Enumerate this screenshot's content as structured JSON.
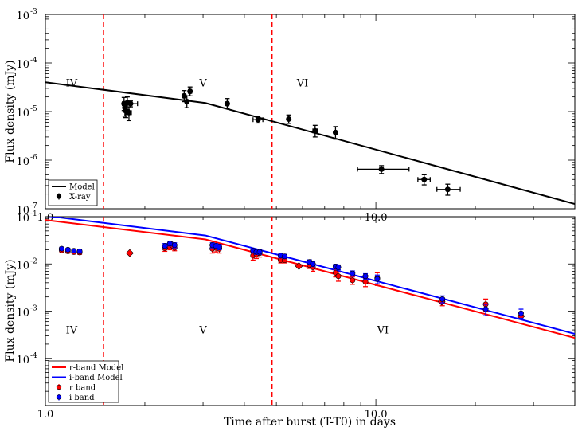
{
  "chart_data": [
    {
      "id": "top",
      "type": "line",
      "xscale": "log",
      "yscale": "log",
      "xlim": [
        1.0,
        40.0
      ],
      "ylim": [
        1e-07,
        0.001
      ],
      "xlabel": "",
      "ylabel": "Flux density (mJy)",
      "x_tick_labels": [
        {
          "value": 1.0,
          "label": "1.0"
        },
        {
          "value": 10.0,
          "label": "10.0"
        }
      ],
      "y_tick_labels": [
        {
          "value": 1e-07,
          "base": "10",
          "exp": "-7"
        },
        {
          "value": 1e-06,
          "base": "10",
          "exp": "-6"
        },
        {
          "value": 1e-05,
          "base": "10",
          "exp": "-5"
        },
        {
          "value": 0.0001,
          "base": "10",
          "exp": "-4"
        },
        {
          "value": 0.001,
          "base": "10",
          "exp": "-3"
        }
      ],
      "vlines": [
        1.5,
        4.85
      ],
      "vline_color": "#ff0000",
      "regions": [
        {
          "label": "IV",
          "x": 1.2,
          "y": 3.3e-05
        },
        {
          "label": "V",
          "x": 3.0,
          "y": 3.3e-05
        },
        {
          "label": "VI",
          "x": 6.0,
          "y": 3.3e-05
        }
      ],
      "legend_loc": "lower left",
      "series": [
        {
          "name": "Model",
          "kind": "line",
          "color": "#000000",
          "points": [
            [
              1.0,
              4e-05
            ],
            [
              3.05,
              1.5e-05
            ],
            [
              40.0,
              1.25e-07
            ]
          ]
        },
        {
          "name": "X-ray",
          "kind": "errorbar",
          "color": "#000000",
          "marker": "circle",
          "points": [
            {
              "x": 1.73,
              "y": 1.45e-05,
              "xerr": [
                0.02,
                0.02
              ],
              "yerr": [
                4e-06,
                5e-06
              ]
            },
            {
              "x": 1.74,
              "y": 1.2e-05,
              "xerr": [
                0.02,
                0.02
              ],
              "yerr": [
                4e-06,
                4e-06
              ]
            },
            {
              "x": 1.75,
              "y": 1.05e-05,
              "xerr": [
                0.02,
                0.02
              ],
              "yerr": [
                3e-06,
                4e-06
              ]
            },
            {
              "x": 1.77,
              "y": 1.5e-05,
              "xerr": [
                0.02,
                0.02
              ],
              "yerr": [
                4e-06,
                5e-06
              ]
            },
            {
              "x": 1.79,
              "y": 9.5e-06,
              "xerr": [
                0.03,
                0.03
              ],
              "yerr": [
                3e-06,
                3e-06
              ]
            },
            {
              "x": 1.81,
              "y": 1.45e-05,
              "xerr": [
                0.06,
                0.09
              ],
              "yerr": [
                2e-06,
                2e-06
              ]
            },
            {
              "x": 2.63,
              "y": 2.1e-05,
              "xerr": [
                0.03,
                0.03
              ],
              "yerr": [
                5e-06,
                6e-06
              ]
            },
            {
              "x": 2.68,
              "y": 1.6e-05,
              "xerr": [
                0.03,
                0.03
              ],
              "yerr": [
                4e-06,
                5e-06
              ]
            },
            {
              "x": 2.74,
              "y": 2.6e-05,
              "xerr": [
                0.03,
                0.03
              ],
              "yerr": [
                5e-06,
                6e-06
              ]
            },
            {
              "x": 3.55,
              "y": 1.45e-05,
              "xerr": [
                0.03,
                0.04
              ],
              "yerr": [
                3e-06,
                4e-06
              ]
            },
            {
              "x": 4.4,
              "y": 6.8e-06,
              "xerr": [
                0.15,
                0.15
              ],
              "yerr": [
                1e-06,
                1e-06
              ]
            },
            {
              "x": 5.45,
              "y": 7e-06,
              "xerr": [
                0.03,
                0.03
              ],
              "yerr": [
                1.3e-06,
                1.5e-06
              ]
            },
            {
              "x": 6.55,
              "y": 4e-06,
              "xerr": [
                0.1,
                0.1
              ],
              "yerr": [
                1e-06,
                1.2e-06
              ]
            },
            {
              "x": 7.55,
              "y": 3.7e-06,
              "xerr": [
                0.04,
                0.04
              ],
              "yerr": [
                1e-06,
                1.2e-06
              ]
            },
            {
              "x": 10.4,
              "y": 6.5e-07,
              "xerr": [
                1.6,
                2.2
              ],
              "yerr": [
                1.2e-07,
                1.2e-07
              ]
            },
            {
              "x": 14.0,
              "y": 4e-07,
              "xerr": [
                0.6,
                0.6
              ],
              "yerr": [
                9e-08,
                1e-07
              ]
            },
            {
              "x": 16.5,
              "y": 2.5e-07,
              "xerr": [
                1.2,
                1.5
              ],
              "yerr": [
                6e-08,
                7e-08
              ]
            }
          ]
        }
      ]
    },
    {
      "id": "bottom",
      "type": "line",
      "xscale": "log",
      "yscale": "log",
      "xlim": [
        1.0,
        40.0
      ],
      "ylim": [
        1e-05,
        0.1
      ],
      "xlabel": "Time after burst (T-T0) in days",
      "ylabel": "Flux density (mJy)",
      "x_tick_labels": [
        {
          "value": 1.0,
          "label": "1.0"
        },
        {
          "value": 10.0,
          "label": "10.0"
        }
      ],
      "y_tick_labels": [
        {
          "value": 0.0001,
          "base": "10",
          "exp": "-4"
        },
        {
          "value": 0.001,
          "base": "10",
          "exp": "-3"
        },
        {
          "value": 0.01,
          "base": "10",
          "exp": "-2"
        },
        {
          "value": 0.1,
          "base": "10",
          "exp": "-1"
        }
      ],
      "vlines": [
        1.5,
        4.85
      ],
      "vline_color": "#ff0000",
      "regions": [
        {
          "label": "IV",
          "x": 1.2,
          "y": 0.00034
        },
        {
          "label": "V",
          "x": 3.0,
          "y": 0.00034
        },
        {
          "label": "VI",
          "x": 10.5,
          "y": 0.00034
        }
      ],
      "legend_loc": "lower left",
      "series": [
        {
          "name": "r-band Model",
          "kind": "line",
          "color": "#ff0000",
          "points": [
            [
              1.0,
              0.085
            ],
            [
              3.05,
              0.033
            ],
            [
              40.0,
              0.00027
            ]
          ]
        },
        {
          "name": "i-band Model",
          "kind": "line",
          "color": "#0000ff",
          "points": [
            [
              1.0,
              0.105
            ],
            [
              3.05,
              0.04
            ],
            [
              40.0,
              0.00033
            ]
          ]
        },
        {
          "name": "r band",
          "kind": "errorbar",
          "color": "#ff0000",
          "marker": "circle",
          "points": [
            {
              "x": 1.12,
              "y": 0.0195,
              "yerr": 0.0015
            },
            {
              "x": 1.17,
              "y": 0.0185,
              "yerr": 0.0015
            },
            {
              "x": 1.22,
              "y": 0.0178,
              "yerr": 0.0015
            },
            {
              "x": 1.27,
              "y": 0.0175,
              "yerr": 0.0015
            },
            {
              "x": 2.3,
              "y": 0.0215,
              "yerr": 0.003
            },
            {
              "x": 2.38,
              "y": 0.023,
              "yerr": 0.003
            },
            {
              "x": 2.46,
              "y": 0.022,
              "yerr": 0.003
            },
            {
              "x": 3.2,
              "y": 0.021,
              "yerr": 0.004
            },
            {
              "x": 3.28,
              "y": 0.022,
              "yerr": 0.004
            },
            {
              "x": 3.36,
              "y": 0.021,
              "yerr": 0.004
            },
            {
              "x": 4.25,
              "y": 0.015,
              "yerr": 0.003
            },
            {
              "x": 4.35,
              "y": 0.016,
              "yerr": 0.003
            },
            {
              "x": 4.45,
              "y": 0.017,
              "yerr": 0.003
            },
            {
              "x": 5.15,
              "y": 0.012,
              "yerr": 0.0015
            },
            {
              "x": 5.3,
              "y": 0.012,
              "yerr": 0.0015
            },
            {
              "x": 6.3,
              "y": 0.0095,
              "yerr": 0.0015
            },
            {
              "x": 6.45,
              "y": 0.0085,
              "yerr": 0.0015
            },
            {
              "x": 7.55,
              "y": 0.0065,
              "yerr": 0.0012
            },
            {
              "x": 7.7,
              "y": 0.0055,
              "yerr": 0.0012
            },
            {
              "x": 8.5,
              "y": 0.0045,
              "yerr": 0.0008
            },
            {
              "x": 9.3,
              "y": 0.0042,
              "yerr": 0.0009
            },
            {
              "x": 10.1,
              "y": 0.005,
              "yerr": 0.0015
            },
            {
              "x": 15.9,
              "y": 0.0016,
              "yerr": 0.0003
            },
            {
              "x": 21.5,
              "y": 0.0014,
              "yerr": 0.0004
            }
          ]
        },
        {
          "name": "r band (diamonds)",
          "kind": "scatter",
          "color": "#ff0000",
          "marker": "diamond",
          "points": [
            {
              "x": 1.8,
              "y": 0.017
            },
            {
              "x": 2.42,
              "y": 0.025
            },
            {
              "x": 5.85,
              "y": 0.009
            },
            {
              "x": 15.8,
              "y": 0.0016
            },
            {
              "x": 27.5,
              "y": 0.00078
            }
          ]
        },
        {
          "name": "i band",
          "kind": "errorbar",
          "color": "#0000ff",
          "marker": "circle",
          "points": [
            {
              "x": 1.12,
              "y": 0.021,
              "yerr": 0.0015
            },
            {
              "x": 1.17,
              "y": 0.02,
              "yerr": 0.0015
            },
            {
              "x": 1.22,
              "y": 0.019,
              "yerr": 0.0015
            },
            {
              "x": 1.27,
              "y": 0.0185,
              "yerr": 0.0015
            },
            {
              "x": 2.3,
              "y": 0.024,
              "yerr": 0.003
            },
            {
              "x": 2.38,
              "y": 0.027,
              "yerr": 0.003
            },
            {
              "x": 2.46,
              "y": 0.025,
              "yerr": 0.003
            },
            {
              "x": 3.2,
              "y": 0.025,
              "yerr": 0.003
            },
            {
              "x": 3.28,
              "y": 0.024,
              "yerr": 0.003
            },
            {
              "x": 3.36,
              "y": 0.023,
              "yerr": 0.003
            },
            {
              "x": 4.25,
              "y": 0.019,
              "yerr": 0.002
            },
            {
              "x": 4.35,
              "y": 0.018,
              "yerr": 0.002
            },
            {
              "x": 4.45,
              "y": 0.018,
              "yerr": 0.002
            },
            {
              "x": 5.15,
              "y": 0.015,
              "yerr": 0.0015
            },
            {
              "x": 5.3,
              "y": 0.0145,
              "yerr": 0.0015
            },
            {
              "x": 6.3,
              "y": 0.011,
              "yerr": 0.0012
            },
            {
              "x": 6.45,
              "y": 0.01,
              "yerr": 0.0012
            },
            {
              "x": 7.55,
              "y": 0.0088,
              "yerr": 0.001
            },
            {
              "x": 7.7,
              "y": 0.0085,
              "yerr": 0.001
            },
            {
              "x": 8.5,
              "y": 0.0063,
              "yerr": 0.0008
            },
            {
              "x": 9.3,
              "y": 0.0055,
              "yerr": 0.0007
            },
            {
              "x": 10.1,
              "y": 0.0048,
              "yerr": 0.001
            },
            {
              "x": 15.9,
              "y": 0.0018,
              "yerr": 0.0003
            },
            {
              "x": 21.5,
              "y": 0.0011,
              "yerr": 0.0003
            },
            {
              "x": 27.5,
              "y": 0.0009,
              "yerr": 0.0002
            }
          ]
        }
      ]
    }
  ]
}
